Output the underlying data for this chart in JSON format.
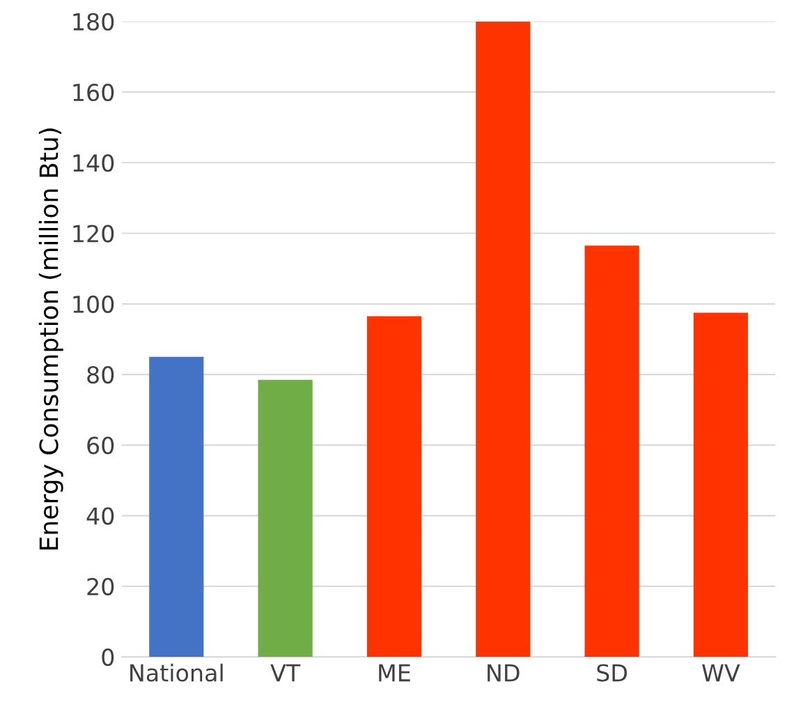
{
  "chart_data": {
    "type": "bar",
    "ylabel": "Energy Consumption (million Btu)",
    "categories": [
      "National",
      "VT",
      "ME",
      "ND",
      "SD",
      "WV"
    ],
    "values": [
      85,
      78.5,
      96.5,
      180,
      116.5,
      97.5
    ],
    "colors": [
      "#4472c4",
      "#70ad47",
      "#ff3300",
      "#ff3300",
      "#ff3300",
      "#ff3300"
    ],
    "ylim": [
      0,
      180
    ],
    "yticks": [
      0,
      20,
      40,
      60,
      80,
      100,
      120,
      140,
      160,
      180
    ],
    "grid": "y",
    "legend": false
  }
}
